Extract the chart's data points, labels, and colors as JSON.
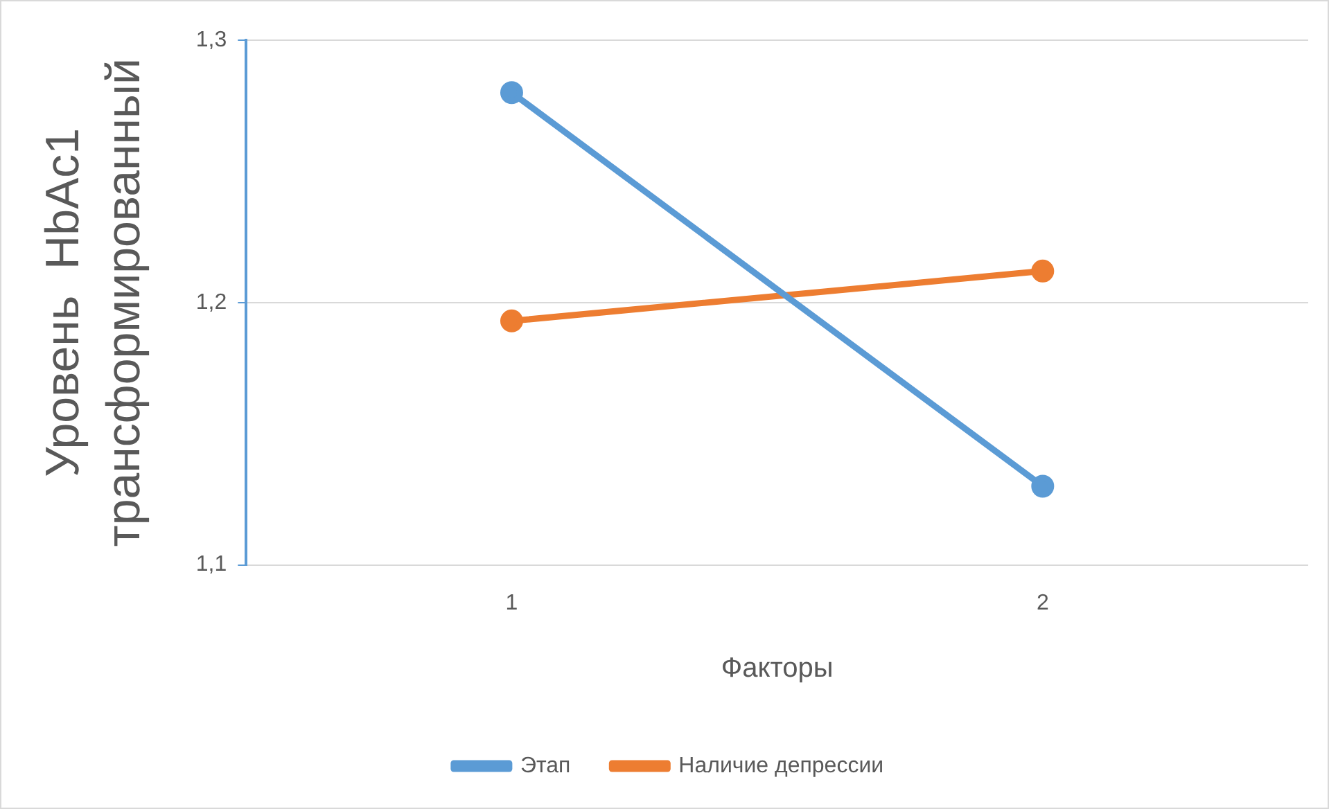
{
  "chart_data": {
    "type": "line",
    "xlabel": "Факторы",
    "ylabel": "Уровень  HbAc1\nтрансформированный",
    "categories": [
      "1",
      "2"
    ],
    "series": [
      {
        "name": "Этап",
        "color": "#5b9bd5",
        "values": [
          1.28,
          1.13
        ]
      },
      {
        "name": "Наличие депрессии",
        "color": "#ed7d31",
        "values": [
          1.193,
          1.212
        ]
      }
    ],
    "ylim": [
      1.1,
      1.3
    ],
    "yticks": [
      {
        "value": 1.1,
        "label": "1,1"
      },
      {
        "value": 1.2,
        "label": "1,2"
      },
      {
        "value": 1.3,
        "label": "1,3"
      }
    ],
    "grid": "y",
    "legend": "bottom",
    "marker": "circle",
    "line_style": "solid"
  }
}
